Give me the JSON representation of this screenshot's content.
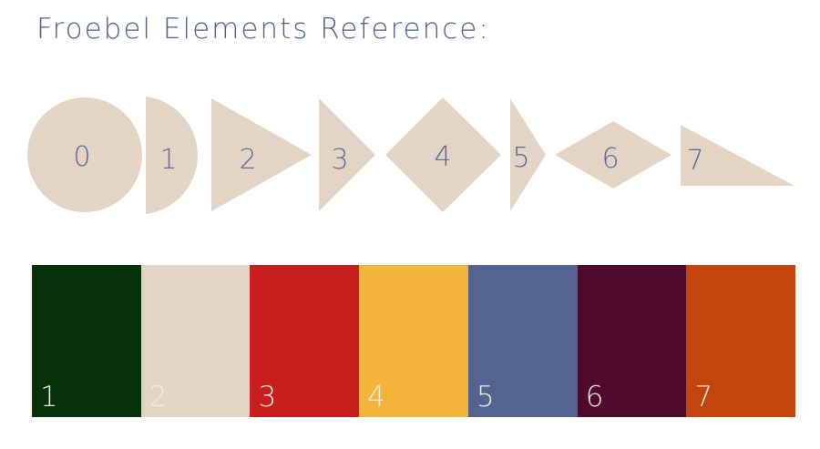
{
  "title": "Froebel Elements Reference:",
  "shape_fill": "#e3d4c6",
  "shape_label_color": "#5a6a94",
  "elements": [
    {
      "label": "0",
      "shape": "circle-icon"
    },
    {
      "label": "1",
      "shape": "half-circle-icon"
    },
    {
      "label": "2",
      "shape": "triangle-icon"
    },
    {
      "label": "3",
      "shape": "narrow-triangle-icon"
    },
    {
      "label": "4",
      "shape": "square-diamond-icon"
    },
    {
      "label": "5",
      "shape": "thin-triangle-icon"
    },
    {
      "label": "6",
      "shape": "flat-rhombus-icon"
    },
    {
      "label": "7",
      "shape": "right-triangle-icon"
    }
  ],
  "swatches": [
    {
      "label": "1",
      "color": "#063209"
    },
    {
      "label": "2",
      "color": "#e3d4c6"
    },
    {
      "label": "3",
      "color": "#c91e1e"
    },
    {
      "label": "4",
      "color": "#f5b43a"
    },
    {
      "label": "5",
      "color": "#52648f"
    },
    {
      "label": "6",
      "color": "#4f0a2c"
    },
    {
      "label": "7",
      "color": "#c2450d"
    }
  ]
}
